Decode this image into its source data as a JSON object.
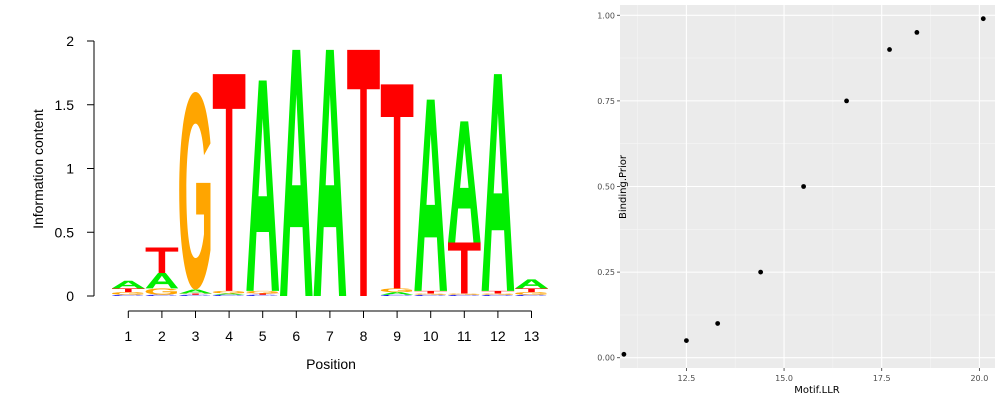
{
  "chart_data": [
    {
      "type": "sequence-logo",
      "xlabel": "Position",
      "ylabel": "Information content",
      "ylim": [
        0,
        2
      ],
      "y_ticks": [
        "0",
        "0.5",
        "1",
        "1.5",
        "2"
      ],
      "positions": [
        "1",
        "2",
        "3",
        "4",
        "5",
        "6",
        "7",
        "8",
        "9",
        "10",
        "11",
        "12",
        "13"
      ],
      "colors": {
        "A": "#00ee00",
        "C": "#0000ee",
        "G": "#ffa500",
        "T": "#ff0000"
      },
      "stacks": [
        [
          {
            "base": "C",
            "bits": 0.01
          },
          {
            "base": "G",
            "bits": 0.02
          },
          {
            "base": "T",
            "bits": 0.03
          },
          {
            "base": "A",
            "bits": 0.06
          }
        ],
        [
          {
            "base": "C",
            "bits": 0.01
          },
          {
            "base": "G",
            "bits": 0.05
          },
          {
            "base": "A",
            "bits": 0.12
          },
          {
            "base": "T",
            "bits": 0.2
          }
        ],
        [
          {
            "base": "C",
            "bits": 0.01
          },
          {
            "base": "T",
            "bits": 0.01
          },
          {
            "base": "A",
            "bits": 0.03
          },
          {
            "base": "G",
            "bits": 1.55
          }
        ],
        [
          {
            "base": "C",
            "bits": 0.01
          },
          {
            "base": "A",
            "bits": 0.01
          },
          {
            "base": "G",
            "bits": 0.02
          },
          {
            "base": "T",
            "bits": 1.7
          }
        ],
        [
          {
            "base": "C",
            "bits": 0.01
          },
          {
            "base": "T",
            "bits": 0.01
          },
          {
            "base": "G",
            "bits": 0.02
          },
          {
            "base": "A",
            "bits": 1.65
          }
        ],
        [
          {
            "base": "A",
            "bits": 1.93
          }
        ],
        [
          {
            "base": "A",
            "bits": 1.93
          }
        ],
        [
          {
            "base": "T",
            "bits": 1.93
          }
        ],
        [
          {
            "base": "C",
            "bits": 0.01
          },
          {
            "base": "A",
            "bits": 0.02
          },
          {
            "base": "G",
            "bits": 0.03
          },
          {
            "base": "T",
            "bits": 1.6
          }
        ],
        [
          {
            "base": "C",
            "bits": 0.01
          },
          {
            "base": "G",
            "bits": 0.01
          },
          {
            "base": "T",
            "bits": 0.02
          },
          {
            "base": "A",
            "bits": 1.5
          }
        ],
        [
          {
            "base": "C",
            "bits": 0.01
          },
          {
            "base": "G",
            "bits": 0.01
          },
          {
            "base": "T",
            "bits": 0.4
          },
          {
            "base": "A",
            "bits": 0.95
          }
        ],
        [
          {
            "base": "C",
            "bits": 0.01
          },
          {
            "base": "G",
            "bits": 0.01
          },
          {
            "base": "T",
            "bits": 0.02
          },
          {
            "base": "A",
            "bits": 1.7
          }
        ],
        [
          {
            "base": "C",
            "bits": 0.01
          },
          {
            "base": "G",
            "bits": 0.02
          },
          {
            "base": "T",
            "bits": 0.03
          },
          {
            "base": "A",
            "bits": 0.07
          }
        ]
      ]
    },
    {
      "type": "scatter",
      "xlabel": "Motif.LLR",
      "ylabel": "Binding.Prior",
      "xlim": [
        10.8,
        20.4
      ],
      "ylim": [
        -0.03,
        1.03
      ],
      "x_ticks": [
        "12.5",
        "15.0",
        "17.5",
        "20.0"
      ],
      "y_ticks": [
        "0.00",
        "0.25",
        "0.50",
        "0.75",
        "1.00"
      ],
      "grid": true,
      "background": "#ebebeb",
      "points": [
        {
          "x": 10.9,
          "y": 0.01
        },
        {
          "x": 12.5,
          "y": 0.05
        },
        {
          "x": 13.3,
          "y": 0.1
        },
        {
          "x": 14.4,
          "y": 0.25
        },
        {
          "x": 15.5,
          "y": 0.5
        },
        {
          "x": 16.6,
          "y": 0.75
        },
        {
          "x": 17.7,
          "y": 0.9
        },
        {
          "x": 18.4,
          "y": 0.95
        },
        {
          "x": 20.1,
          "y": 0.99
        }
      ]
    }
  ]
}
